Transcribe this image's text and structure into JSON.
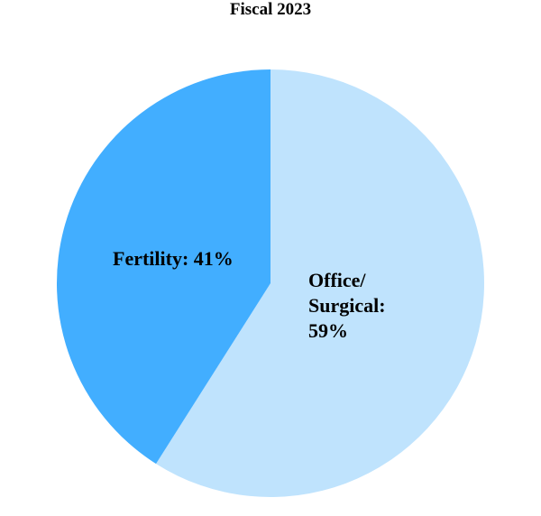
{
  "chart_data": {
    "type": "pie",
    "title": "Fiscal 2023",
    "slices": [
      {
        "label_lines": [
          "Office/",
          "Surgical:",
          "59%"
        ],
        "value": 59,
        "color": "#BFE3FD"
      },
      {
        "label_lines": [
          "Fertility: 41%"
        ],
        "value": 41,
        "color": "#42AEFF"
      }
    ],
    "start": "12 o'clock",
    "direction": "clockwise",
    "legend": "none"
  }
}
